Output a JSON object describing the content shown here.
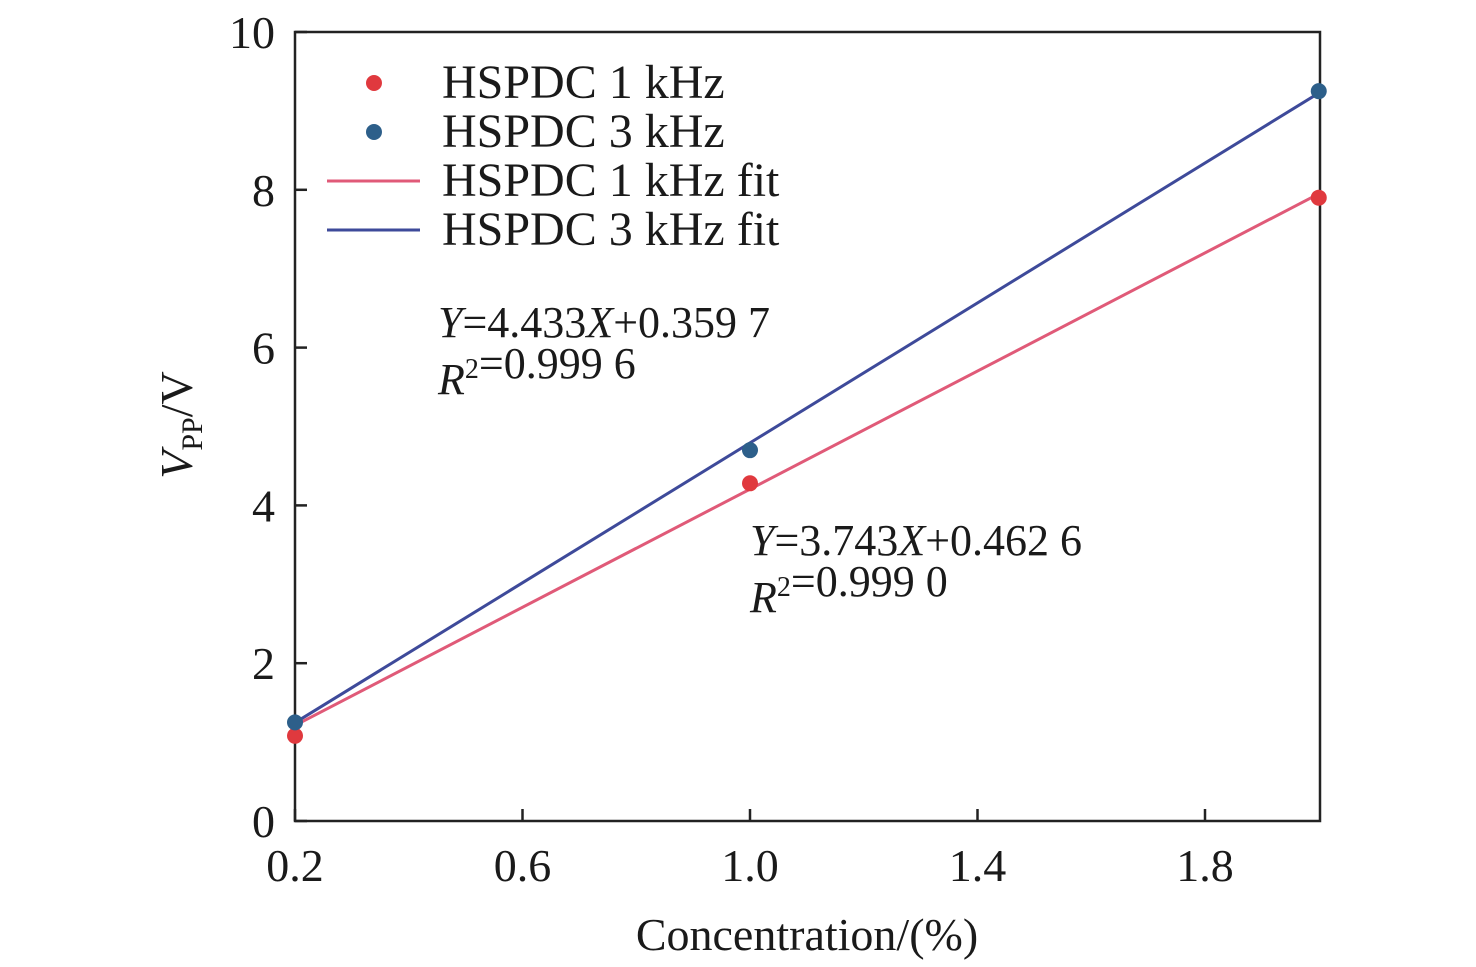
{
  "chart_data": {
    "type": "scatter",
    "xlabel": "Concentration/(%)",
    "ylabel": {
      "main": "V",
      "sub": "PP",
      "rest": "/V"
    },
    "xlim": [
      0.2,
      2.0
    ],
    "ylim": [
      0,
      10
    ],
    "xticks": [
      0.2,
      0.6,
      1.0,
      1.4,
      1.8
    ],
    "xtick_labels": [
      "0.2",
      "0.6",
      "1.0",
      "1.4",
      "1.8"
    ],
    "yticks": [
      0,
      2,
      4,
      6,
      8,
      10
    ],
    "ytick_labels": [
      "0",
      "2",
      "4",
      "6",
      "8",
      "10"
    ],
    "grid": false,
    "legend_position": "top-left",
    "series": [
      {
        "name": "HSPDC 1 kHz",
        "kind": "points",
        "color": "#e0393e",
        "x": [
          0.2,
          1.0,
          2.0
        ],
        "y": [
          1.08,
          4.28,
          7.9
        ]
      },
      {
        "name": "HSPDC 3 kHz",
        "kind": "points",
        "color": "#2d5f8a",
        "x": [
          0.2,
          1.0,
          2.0
        ],
        "y": [
          1.25,
          4.7,
          9.25
        ]
      },
      {
        "name": "HSPDC 1 kHz fit",
        "kind": "line",
        "color": "#e05a78",
        "x": [
          0.2,
          2.0
        ],
        "y": [
          1.211,
          7.949
        ]
      },
      {
        "name": "HSPDC 3 kHz fit",
        "kind": "line",
        "color": "#3e4a9a",
        "x": [
          0.2,
          2.0
        ],
        "y": [
          1.246,
          9.226
        ]
      }
    ],
    "annotations": [
      {
        "lines": [
          {
            "parts": [
              {
                "t": "Y",
                "i": true
              },
              {
                "t": "=4.433"
              },
              {
                "t": "X",
                "i": true
              },
              {
                "t": "+0.359 7"
              }
            ]
          },
          {
            "parts": [
              {
                "t": "R",
                "i": true
              },
              {
                "t": "2",
                "sup": true
              },
              {
                "t": "=0.999 6"
              }
            ]
          }
        ]
      },
      {
        "lines": [
          {
            "parts": [
              {
                "t": "Y",
                "i": true
              },
              {
                "t": "=3.743"
              },
              {
                "t": "X",
                "i": true
              },
              {
                "t": "+0.462 6"
              }
            ]
          },
          {
            "parts": [
              {
                "t": "R",
                "i": true
              },
              {
                "t": "2",
                "sup": true
              },
              {
                "t": "=0.999 0"
              }
            ]
          }
        ]
      }
    ]
  }
}
